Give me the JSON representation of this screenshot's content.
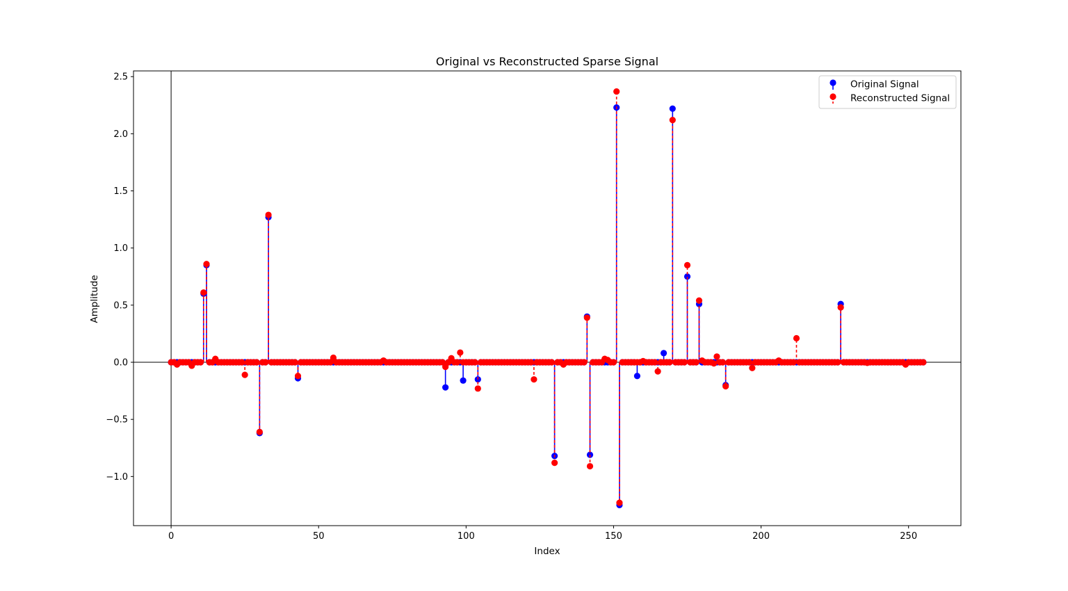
{
  "chart_data": {
    "type": "stem",
    "title": "Original vs Reconstructed Sparse Signal",
    "xlabel": "Index",
    "ylabel": "Amplitude",
    "xlim": [
      -12.75,
      267.75
    ],
    "ylim": [
      -1.43,
      2.55
    ],
    "xticks": [
      0,
      50,
      100,
      150,
      200,
      250
    ],
    "xtick_labels": [
      "0",
      "50",
      "100",
      "150",
      "200",
      "250"
    ],
    "yticks": [
      -1.0,
      -0.5,
      0.0,
      0.5,
      1.0,
      1.5,
      2.0,
      2.5
    ],
    "ytick_labels": [
      "−1.0",
      "−0.5",
      "0.0",
      "0.5",
      "1.0",
      "1.5",
      "2.0",
      "2.5"
    ],
    "n_samples": 256,
    "grid": false,
    "legend_position": "upper right",
    "series": [
      {
        "name": "Original Signal",
        "color": "#0000ff",
        "linestyle": "solid",
        "points": [
          [
            11,
            0.6
          ],
          [
            12,
            0.85
          ],
          [
            30,
            -0.62
          ],
          [
            33,
            1.27
          ],
          [
            43,
            -0.14
          ],
          [
            93,
            -0.22
          ],
          [
            99,
            -0.16
          ],
          [
            104,
            -0.15
          ],
          [
            130,
            -0.82
          ],
          [
            141,
            0.4
          ],
          [
            142,
            -0.81
          ],
          [
            151,
            2.23
          ],
          [
            152,
            -1.25
          ],
          [
            158,
            -0.12
          ],
          [
            167,
            0.08
          ],
          [
            170,
            2.22
          ],
          [
            175,
            0.75
          ],
          [
            179,
            0.51
          ],
          [
            188,
            -0.2
          ],
          [
            227,
            0.51
          ]
        ]
      },
      {
        "name": "Reconstructed Signal",
        "color": "#ff0000",
        "linestyle": "dashed",
        "points": [
          [
            2,
            -0.02
          ],
          [
            7,
            -0.03
          ],
          [
            11,
            0.61
          ],
          [
            12,
            0.86
          ],
          [
            15,
            0.03
          ],
          [
            25,
            -0.11
          ],
          [
            30,
            -0.61
          ],
          [
            33,
            1.29
          ],
          [
            43,
            -0.12
          ],
          [
            55,
            0.04
          ],
          [
            72,
            0.015
          ],
          [
            93,
            -0.04
          ],
          [
            95,
            0.035
          ],
          [
            98,
            0.085
          ],
          [
            104,
            -0.23
          ],
          [
            123,
            -0.15
          ],
          [
            130,
            -0.88
          ],
          [
            133,
            -0.02
          ],
          [
            141,
            0.39
          ],
          [
            142,
            -0.91
          ],
          [
            147,
            0.03
          ],
          [
            148,
            0.02
          ],
          [
            151,
            2.37
          ],
          [
            152,
            -1.23
          ],
          [
            160,
            0.01
          ],
          [
            165,
            -0.08
          ],
          [
            170,
            2.12
          ],
          [
            175,
            0.85
          ],
          [
            179,
            0.54
          ],
          [
            180,
            0.015
          ],
          [
            184,
            -0.01
          ],
          [
            185,
            0.05
          ],
          [
            188,
            -0.21
          ],
          [
            197,
            -0.05
          ],
          [
            206,
            0.015
          ],
          [
            212,
            0.21
          ],
          [
            227,
            0.48
          ],
          [
            236,
            -0.005
          ],
          [
            249,
            -0.02
          ]
        ]
      }
    ]
  }
}
